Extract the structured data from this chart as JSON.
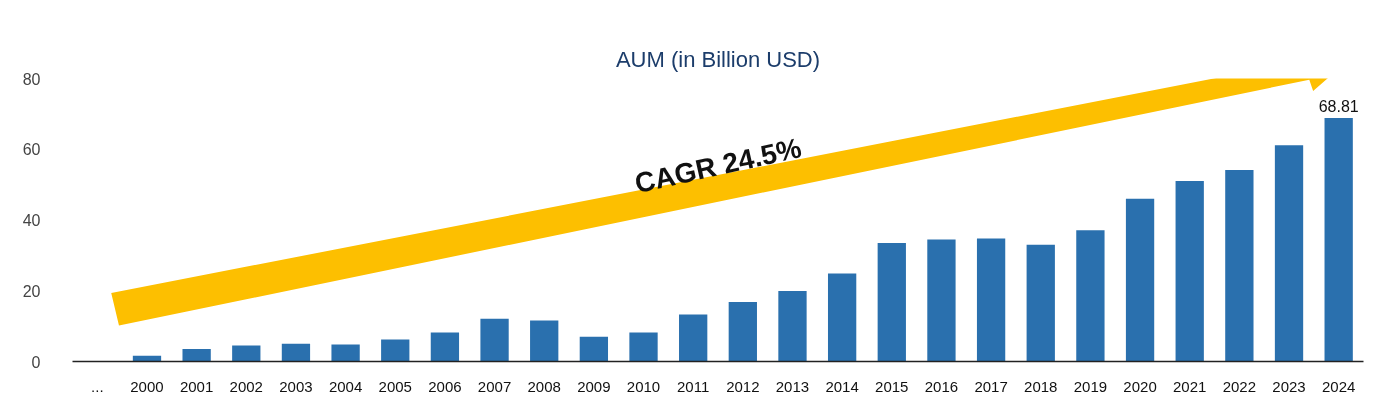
{
  "chart_data": {
    "type": "bar",
    "title": "AUM (in Billion USD)",
    "categories": [
      "...",
      "2000",
      "2001",
      "2002",
      "2003",
      "2004",
      "2005",
      "2006",
      "2007",
      "2008",
      "2009",
      "2010",
      "2011",
      "2012",
      "2013",
      "2014",
      "2015",
      "2016",
      "2017",
      "2018",
      "2019",
      "2020",
      "2021",
      "2022",
      "2023",
      "2024"
    ],
    "values": [
      null,
      1.6,
      3.5,
      4.5,
      5.0,
      4.8,
      6.2,
      8.2,
      12.1,
      11.6,
      7.0,
      8.2,
      13.3,
      16.8,
      19.9,
      24.9,
      33.5,
      34.5,
      34.8,
      33.0,
      37.1,
      46.0,
      51.0,
      54.1,
      61.1,
      68.81
    ],
    "value_labels": [
      null,
      null,
      null,
      null,
      null,
      null,
      null,
      null,
      null,
      null,
      null,
      null,
      null,
      null,
      null,
      null,
      null,
      null,
      null,
      null,
      null,
      null,
      null,
      null,
      null,
      "68.81"
    ],
    "color": "#2a70ae",
    "ylim": [
      0,
      80
    ],
    "yticks": [
      0,
      20,
      40,
      60,
      80
    ],
    "grid": false,
    "annotations": [
      "CAGR 24.5%"
    ]
  }
}
